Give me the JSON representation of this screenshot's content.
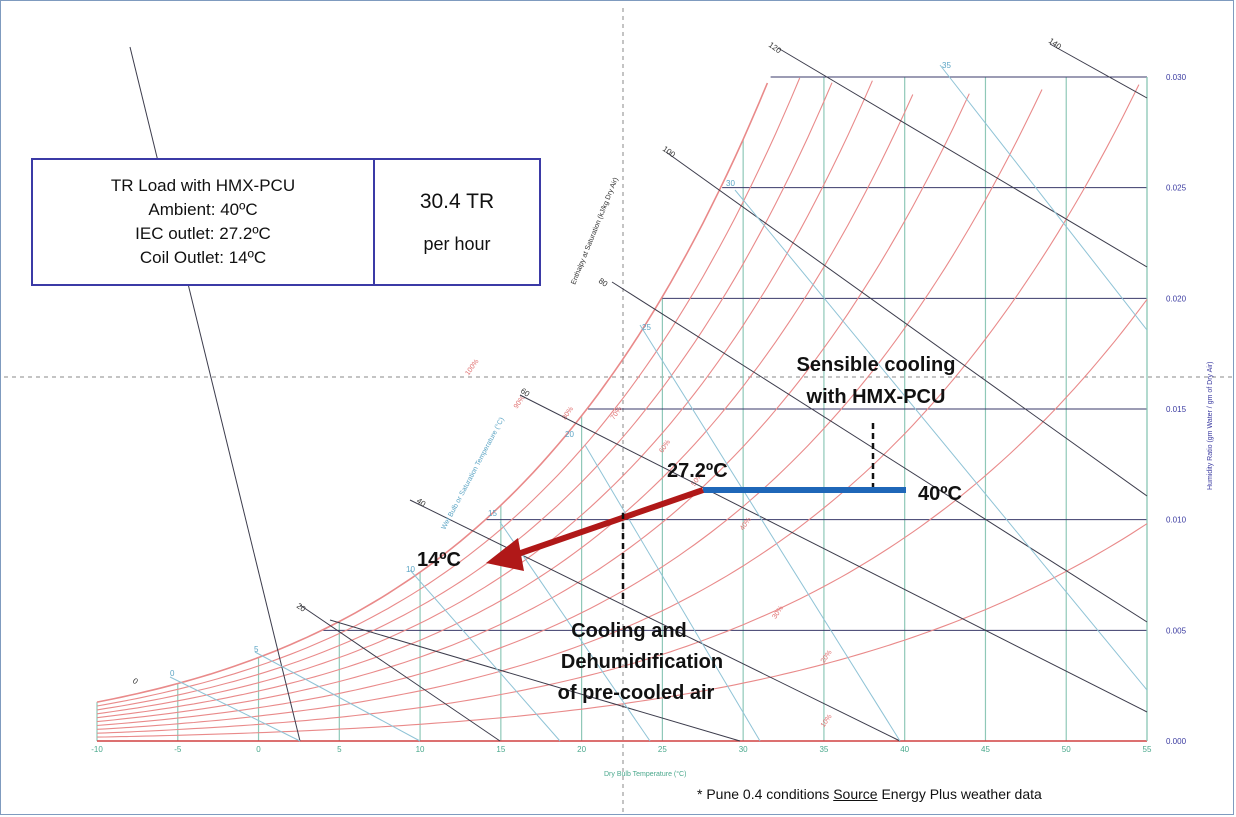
{
  "info_box": {
    "lines": [
      "TR  Load with HMX-PCU",
      "Ambient: 40ºC",
      "IEC outlet: 27.2ºC",
      "Coil Outlet: 14ºC"
    ],
    "value": "30.4 TR",
    "unit": "per hour"
  },
  "annotations": {
    "temp_40": "40ºC",
    "temp_27": "27.2ºC",
    "temp_14": "14ºC",
    "sensible": [
      "Sensible cooling",
      "with HMX-PCU"
    ],
    "cooling": [
      "Cooling and",
      "Dehumidification",
      "of pre-cooled air"
    ]
  },
  "footnote": {
    "prefix": "* Pune  0.4 conditions  ",
    "source": "Source",
    "suffix": " Energy Plus weather data"
  },
  "chart_data": {
    "type": "line",
    "title": "",
    "xlabel": "Dry Bulb Temperature (°C)",
    "ylabel": "Humidity Ratio (gm Water / gm of Dry Air)",
    "saturation_label": "Enthalpy at Saturation (kJ/kg Dry Air)",
    "wetbulb_label": "Wet Bulb or Saturation Temperature (°C)",
    "relhum_label": "Relative Humidity",
    "xlim": [
      -10,
      55
    ],
    "ylim": [
      0,
      0.03
    ],
    "x_ticks": [
      "-10",
      "-5",
      "0",
      "5",
      "10",
      "15",
      "20",
      "25",
      "30",
      "35",
      "40",
      "45",
      "50",
      "55"
    ],
    "y_ticks": [
      "0.000",
      "0.005",
      "0.010",
      "0.015",
      "0.020",
      "0.025",
      "0.030"
    ],
    "rh_curves": [
      10,
      20,
      30,
      40,
      50,
      60,
      70,
      80,
      90,
      100
    ],
    "rh_labels": [
      "10%",
      "20%",
      "30%",
      "40%",
      "50%",
      "60%",
      "70%",
      "80%",
      "90%",
      "100%"
    ],
    "enthalpy_ticks": [
      "0",
      "20",
      "40",
      "60",
      "80",
      "100",
      "120",
      "140"
    ],
    "wetbulb_ticks": [
      "0",
      "5",
      "10",
      "15",
      "20",
      "25",
      "30",
      "35"
    ],
    "process": [
      {
        "name": "Sensible cooling with HMX-PCU",
        "from": [
          40,
          0.0125
        ],
        "to": [
          27.2,
          0.0125
        ],
        "color": "#1f67b8"
      },
      {
        "name": "Cooling and Dehumidification",
        "from": [
          27.2,
          0.0125
        ],
        "to": [
          14,
          0.0098
        ],
        "color": "#b01818"
      }
    ]
  }
}
